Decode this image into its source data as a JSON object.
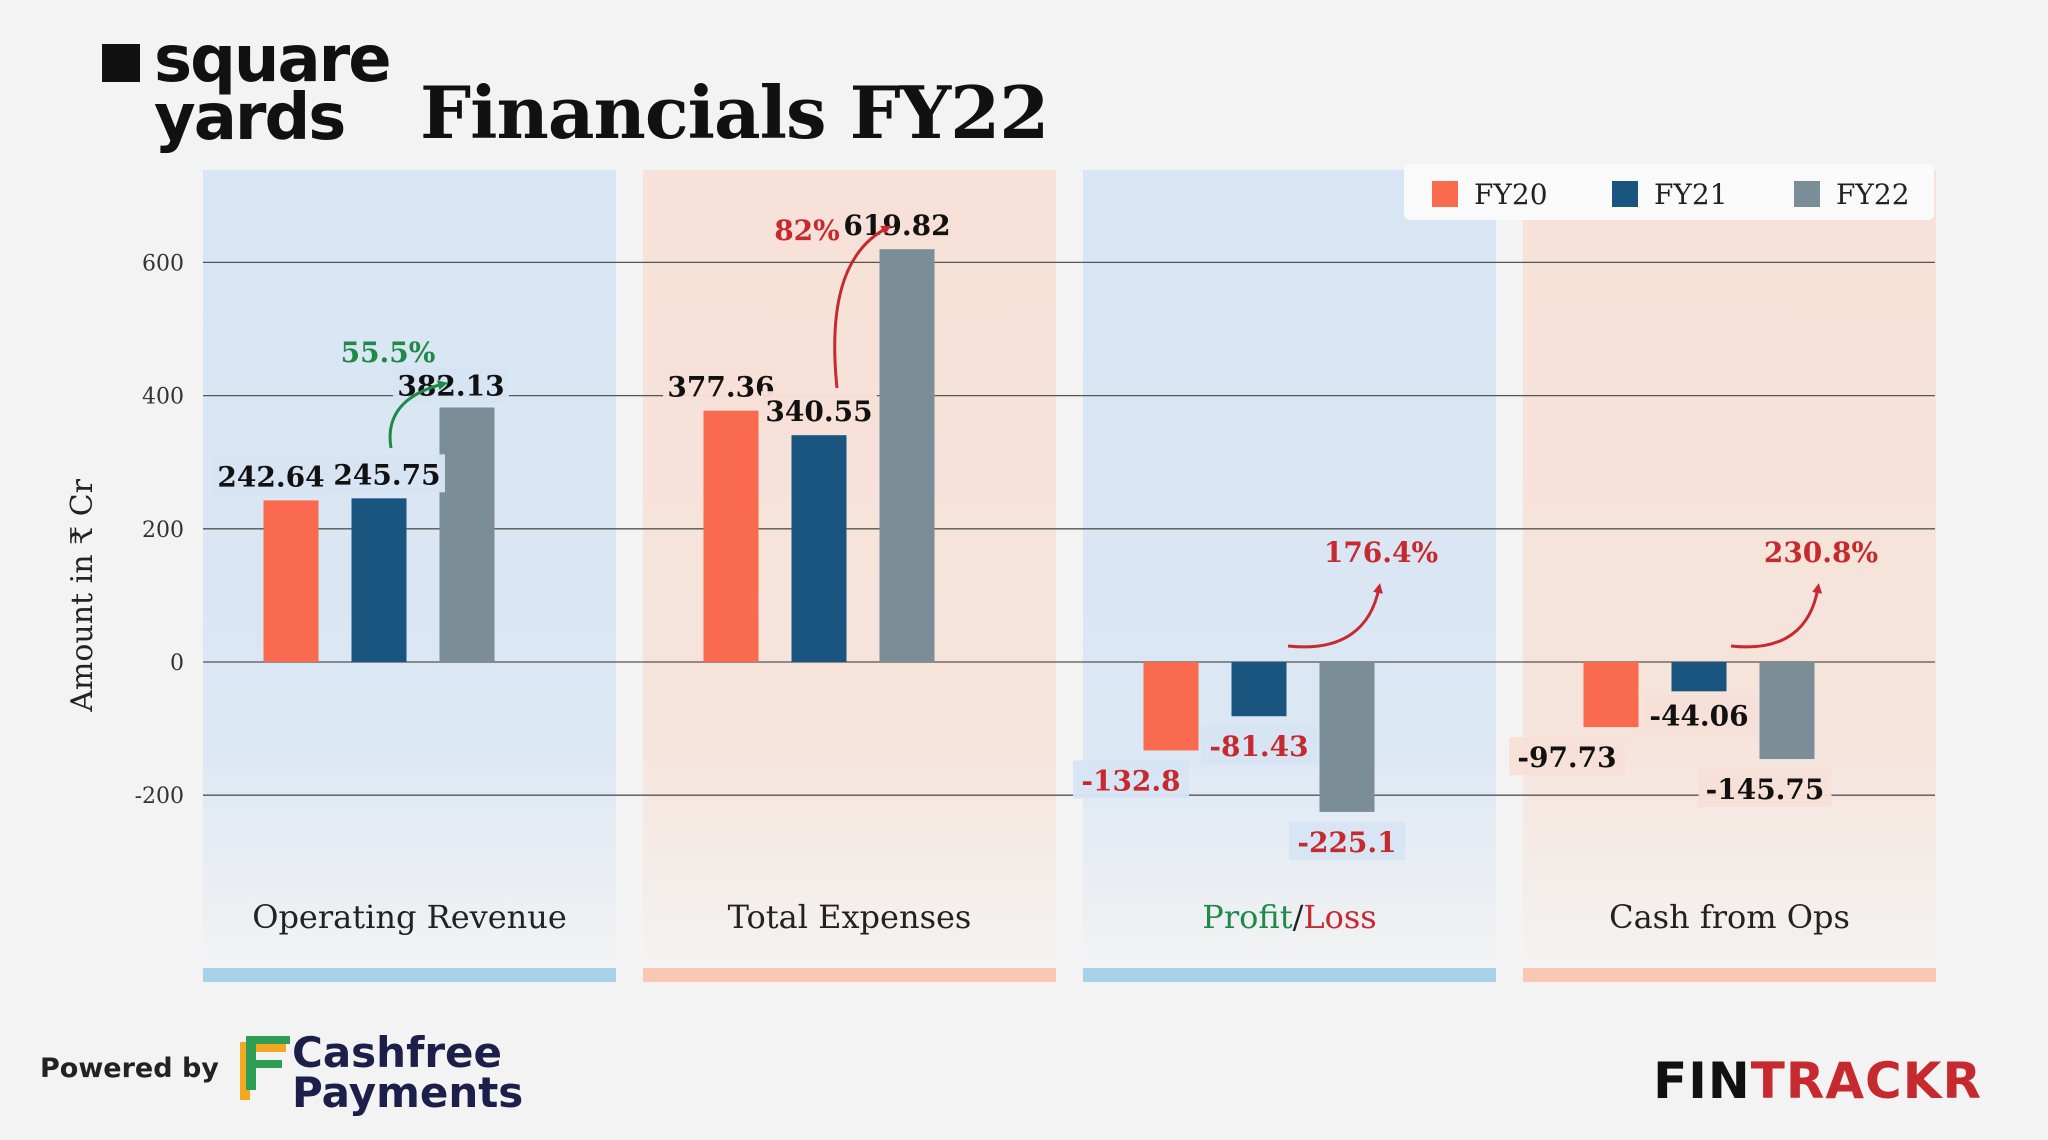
{
  "brand": {
    "line1": "square",
    "line2": "yards"
  },
  "title": "Financials FY22",
  "chart_data": {
    "type": "bar",
    "categories": [
      "Operating Revenue",
      "Total Expenses",
      "Profit/Loss",
      "Cash from Ops"
    ],
    "category_label_parts": [
      [
        {
          "text": "Operating Revenue",
          "color": "#222222"
        }
      ],
      [
        {
          "text": "Total Expenses",
          "color": "#222222"
        }
      ],
      [
        {
          "text": "Profit",
          "color": "#1e8a47"
        },
        {
          "text": "/",
          "color": "#222222"
        },
        {
          "text": "Loss",
          "color": "#c62a2e"
        }
      ],
      [
        {
          "text": "Cash from Ops",
          "color": "#222222"
        }
      ]
    ],
    "series": [
      {
        "name": "FY20",
        "color": "#fa6a4e",
        "values": [
          242.64,
          377.36,
          -132.8,
          -97.73
        ],
        "labels": [
          "242.64",
          "377.36",
          "-132.8",
          "-97.73"
        ]
      },
      {
        "name": "FY21",
        "color": "#1a5580",
        "values": [
          245.75,
          340.55,
          -81.43,
          -44.06
        ],
        "labels": [
          "245.75",
          "340.55",
          "-81.43",
          "-44.06"
        ]
      },
      {
        "name": "FY22",
        "color": "#7b8d96",
        "values": [
          382.13,
          619.82,
          -225.1,
          -145.75
        ],
        "labels": [
          "382.13",
          "619.82",
          "-225.1",
          "-145.75"
        ]
      }
    ],
    "label_colors": [
      "#111111",
      "#111111",
      "#c62a2e",
      "#111111"
    ],
    "growth_annotations": [
      {
        "category": "Operating Revenue",
        "text": "55.5%",
        "color": "#1e8a47"
      },
      {
        "category": "Total Expenses",
        "text": "82%",
        "color": "#c62a2e"
      },
      {
        "category": "Profit/Loss",
        "text": "176.4%",
        "color": "#c62a2e"
      },
      {
        "category": "Cash from Ops",
        "text": "230.8%",
        "color": "#c62a2e"
      }
    ],
    "ylabel": "Amount in ₹ Cr",
    "ylim": [
      -350,
      640
    ],
    "yticks": [
      600,
      400,
      200,
      0,
      -200
    ],
    "grid": true,
    "legend_position": "top-right",
    "panel_colors": [
      "#d6e4f4",
      "#f7e0d6",
      "#d6e4f4",
      "#f7e0d6"
    ],
    "panel_bar_colors": [
      "#a8d1ea",
      "#f8c8b4",
      "#a8d1ea",
      "#f8c8b4"
    ]
  },
  "footer": {
    "powered_by": "Powered by",
    "cashfree_line1": "Cashfree",
    "cashfree_line2": "Payments",
    "fintrackr_part1": "FIN",
    "fintrackr_part2": "TRACKR"
  }
}
